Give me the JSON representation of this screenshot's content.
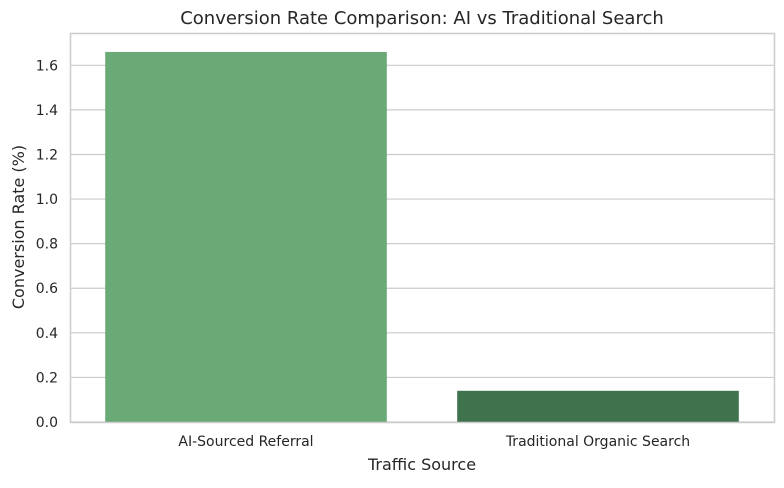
{
  "chart_data": {
    "type": "bar",
    "title": "Conversion Rate Comparison: AI vs Traditional Search",
    "xlabel": "Traffic Source",
    "ylabel": "Conversion Rate (%)",
    "categories": [
      "AI-Sourced Referral",
      "Traditional Organic Search"
    ],
    "values": [
      1.66,
      0.14
    ],
    "colors": [
      "#6aaa77",
      "#3e734e"
    ],
    "ylim": [
      0,
      1.745
    ],
    "yticks": [
      "0.0",
      "0.2",
      "0.4",
      "0.6",
      "0.8",
      "1.0",
      "1.2",
      "1.4",
      "1.6"
    ],
    "grid": "horizontal",
    "legend": "none"
  }
}
